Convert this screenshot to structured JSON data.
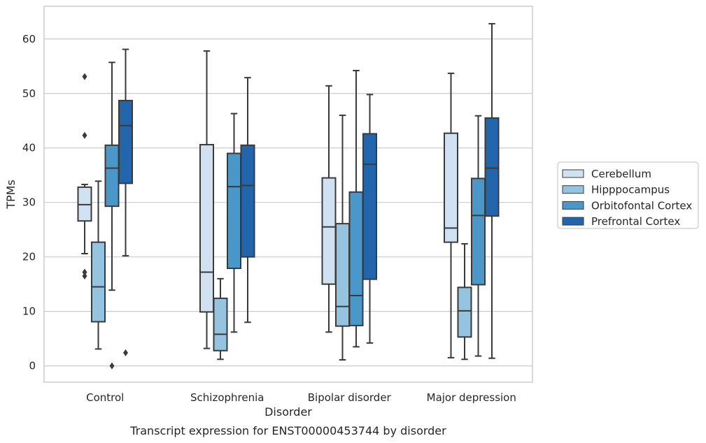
{
  "chart_data": {
    "type": "box",
    "caption": "Transcript expression for ENST00000453744 by disorder",
    "xlabel": "Disorder",
    "ylabel": "TPMs",
    "ylim": [
      -3,
      66
    ],
    "yticks": [
      0,
      10,
      20,
      30,
      40,
      50,
      60
    ],
    "grid": "horizontal",
    "legend_position": "right",
    "categories": [
      "Control",
      "Schizophrenia",
      "Bipolar disorder",
      "Major depression"
    ],
    "series": [
      {
        "name": "Cerebellum",
        "color": "#d0e1f2",
        "boxes": [
          {
            "whisker_low": 20.6,
            "q1": 26.6,
            "median": 29.6,
            "q3": 32.8,
            "whisker_high": 33.3,
            "outliers": [
              53.1,
              42.3,
              17.2,
              16.5
            ]
          },
          {
            "whisker_low": 3.2,
            "q1": 9.9,
            "median": 17.2,
            "q3": 40.6,
            "whisker_high": 57.8,
            "outliers": []
          },
          {
            "whisker_low": 6.2,
            "q1": 15.0,
            "median": 25.5,
            "q3": 34.5,
            "whisker_high": 51.4,
            "outliers": []
          },
          {
            "whisker_low": 1.5,
            "q1": 22.7,
            "median": 25.3,
            "q3": 42.7,
            "whisker_high": 53.7,
            "outliers": []
          }
        ]
      },
      {
        "name": "Hipppocampus",
        "color": "#94c4df",
        "boxes": [
          {
            "whisker_low": 3.1,
            "q1": 8.1,
            "median": 14.5,
            "q3": 22.7,
            "whisker_high": 33.9,
            "outliers": []
          },
          {
            "whisker_low": 1.2,
            "q1": 2.8,
            "median": 5.8,
            "q3": 12.4,
            "whisker_high": 16.0,
            "outliers": []
          },
          {
            "whisker_low": 1.1,
            "q1": 7.3,
            "median": 10.9,
            "q3": 26.1,
            "whisker_high": 46.0,
            "outliers": []
          },
          {
            "whisker_low": 1.2,
            "q1": 5.3,
            "median": 10.1,
            "q3": 14.4,
            "whisker_high": 22.4,
            "outliers": []
          }
        ]
      },
      {
        "name": "Orbitofontal Cortex",
        "color": "#4a98c9",
        "boxes": [
          {
            "whisker_low": 13.9,
            "q1": 29.3,
            "median": 36.3,
            "q3": 40.5,
            "whisker_high": 55.7,
            "outliers": [
              0.0
            ]
          },
          {
            "whisker_low": 6.2,
            "q1": 17.9,
            "median": 32.9,
            "q3": 39.0,
            "whisker_high": 46.3,
            "outliers": []
          },
          {
            "whisker_low": 3.5,
            "q1": 7.4,
            "median": 12.9,
            "q3": 31.9,
            "whisker_high": 54.2,
            "outliers": []
          },
          {
            "whisker_low": 1.8,
            "q1": 14.9,
            "median": 27.6,
            "q3": 34.4,
            "whisker_high": 45.9,
            "outliers": []
          }
        ]
      },
      {
        "name": "Prefrontal Cortex",
        "color": "#2166ac",
        "boxes": [
          {
            "whisker_low": 20.2,
            "q1": 33.5,
            "median": 44.1,
            "q3": 48.7,
            "whisker_high": 58.1,
            "outliers": [
              2.4
            ]
          },
          {
            "whisker_low": 8.0,
            "q1": 20.0,
            "median": 33.1,
            "q3": 40.5,
            "whisker_high": 52.9,
            "outliers": []
          },
          {
            "whisker_low": 4.2,
            "q1": 15.9,
            "median": 37.0,
            "q3": 42.6,
            "whisker_high": 49.8,
            "outliers": []
          },
          {
            "whisker_low": 1.4,
            "q1": 27.5,
            "median": 36.3,
            "q3": 45.5,
            "whisker_high": 62.8,
            "outliers": []
          }
        ]
      }
    ]
  }
}
